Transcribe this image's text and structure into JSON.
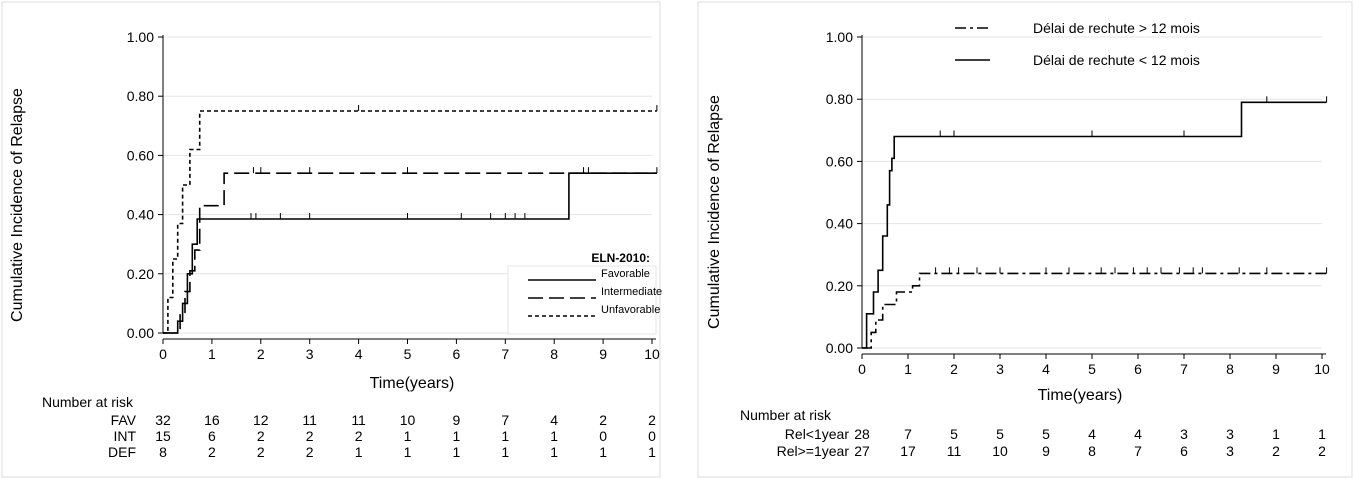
{
  "colors": {
    "line": "#000000",
    "grid": "#e4e4e4",
    "axis": "#000000",
    "background": "#ffffff"
  },
  "chart_data": [
    {
      "type": "line",
      "step": true,
      "ylabel": "Cumulative Incidence of Relapse",
      "xlabel": "Time(years)",
      "xlim": [
        0,
        10
      ],
      "ylim": [
        0,
        1
      ],
      "xticks": [
        0,
        1,
        2,
        3,
        4,
        5,
        6,
        7,
        8,
        9,
        10
      ],
      "yticks": [
        "0.00",
        "0.20",
        "0.40",
        "0.60",
        "0.80",
        "1.00"
      ],
      "grid": true,
      "legend": {
        "position": "bottom-right",
        "title": "ELN-2010:"
      },
      "series": [
        {
          "name": "Favorable",
          "style": "solid",
          "points": [
            [
              0,
              0
            ],
            [
              0.3,
              0
            ],
            [
              0.3,
              0.04
            ],
            [
              0.4,
              0.04
            ],
            [
              0.4,
              0.1
            ],
            [
              0.5,
              0.1
            ],
            [
              0.5,
              0.2
            ],
            [
              0.6,
              0.2
            ],
            [
              0.6,
              0.3
            ],
            [
              0.7,
              0.3
            ],
            [
              0.7,
              0.385
            ],
            [
              8.3,
              0.385
            ],
            [
              8.3,
              0.54
            ],
            [
              10.1,
              0.54
            ]
          ],
          "censor": [
            1.8,
            1.9,
            2.4,
            3.0,
            5.0,
            6.1,
            6.7,
            7.0,
            7.2,
            7.4,
            8.6
          ]
        },
        {
          "name": "Intermediate",
          "style": "dashed",
          "points": [
            [
              0,
              0
            ],
            [
              0.35,
              0
            ],
            [
              0.35,
              0.07
            ],
            [
              0.45,
              0.07
            ],
            [
              0.45,
              0.14
            ],
            [
              0.55,
              0.14
            ],
            [
              0.55,
              0.21
            ],
            [
              0.65,
              0.21
            ],
            [
              0.65,
              0.28
            ],
            [
              0.75,
              0.28
            ],
            [
              0.75,
              0.43
            ],
            [
              1.25,
              0.43
            ],
            [
              1.25,
              0.54
            ],
            [
              10.1,
              0.54
            ]
          ],
          "censor": [
            1.85,
            2.0,
            3.0,
            5.0,
            8.7,
            10.1
          ]
        },
        {
          "name": "Unfavorable",
          "style": "dotted",
          "points": [
            [
              0,
              0
            ],
            [
              0.1,
              0
            ],
            [
              0.1,
              0.12
            ],
            [
              0.2,
              0.12
            ],
            [
              0.2,
              0.25
            ],
            [
              0.3,
              0.25
            ],
            [
              0.3,
              0.37
            ],
            [
              0.4,
              0.37
            ],
            [
              0.4,
              0.5
            ],
            [
              0.55,
              0.5
            ],
            [
              0.55,
              0.62
            ],
            [
              0.75,
              0.62
            ],
            [
              0.75,
              0.75
            ],
            [
              10.1,
              0.75
            ]
          ],
          "censor": [
            4.0,
            10.1
          ]
        }
      ],
      "risk_table": {
        "title": "Number at risk",
        "rows": [
          {
            "label": "FAV",
            "values": [
              "32",
              "16",
              "12",
              "11",
              "11",
              "10",
              "9",
              "7",
              "4",
              "2",
              "2"
            ]
          },
          {
            "label": "INT",
            "values": [
              "15",
              "6",
              "2",
              "2",
              "2",
              "1",
              "1",
              "1",
              "1",
              "0",
              "0"
            ]
          },
          {
            "label": "DEF",
            "values": [
              "8",
              "2",
              "2",
              "2",
              "1",
              "1",
              "1",
              "1",
              "1",
              "1",
              "1"
            ]
          }
        ]
      }
    },
    {
      "type": "line",
      "step": true,
      "ylabel": "Cumulative Incidence of Relapse",
      "xlabel": "Time(years)",
      "xlim": [
        0,
        10
      ],
      "ylim": [
        0,
        1
      ],
      "xticks": [
        0,
        1,
        2,
        3,
        4,
        5,
        6,
        7,
        8,
        9,
        10
      ],
      "yticks": [
        "0.00",
        "0.20",
        "0.40",
        "0.60",
        "0.80",
        "1.00"
      ],
      "grid": true,
      "legend": {
        "position": "top"
      },
      "series": [
        {
          "name": "Délai de rechute > 12 mois",
          "style": "dashdot",
          "points": [
            [
              0,
              0
            ],
            [
              0.2,
              0
            ],
            [
              0.2,
              0.05
            ],
            [
              0.3,
              0.05
            ],
            [
              0.3,
              0.09
            ],
            [
              0.45,
              0.09
            ],
            [
              0.45,
              0.14
            ],
            [
              0.75,
              0.14
            ],
            [
              0.75,
              0.18
            ],
            [
              1.1,
              0.18
            ],
            [
              1.1,
              0.2
            ],
            [
              1.25,
              0.2
            ],
            [
              1.25,
              0.24
            ],
            [
              10.1,
              0.24
            ]
          ],
          "censor": [
            1.6,
            1.9,
            2.1,
            2.5,
            3.0,
            4.0,
            4.5,
            5.2,
            5.5,
            5.9,
            6.2,
            6.5,
            6.9,
            7.2,
            7.4,
            8.2,
            8.8,
            10.1
          ]
        },
        {
          "name": "Délai de rechute < 12 mois",
          "style": "solid",
          "points": [
            [
              0,
              0
            ],
            [
              0.1,
              0
            ],
            [
              0.1,
              0.11
            ],
            [
              0.25,
              0.11
            ],
            [
              0.25,
              0.18
            ],
            [
              0.35,
              0.18
            ],
            [
              0.35,
              0.25
            ],
            [
              0.45,
              0.25
            ],
            [
              0.45,
              0.36
            ],
            [
              0.55,
              0.36
            ],
            [
              0.55,
              0.46
            ],
            [
              0.6,
              0.46
            ],
            [
              0.6,
              0.57
            ],
            [
              0.65,
              0.57
            ],
            [
              0.65,
              0.61
            ],
            [
              0.7,
              0.61
            ],
            [
              0.7,
              0.68
            ],
            [
              8.25,
              0.68
            ],
            [
              8.25,
              0.79
            ],
            [
              10.1,
              0.79
            ]
          ],
          "censor": [
            1.7,
            2.0,
            5.0,
            7.0,
            8.8,
            10.1
          ]
        }
      ],
      "risk_table": {
        "title": "Number at risk",
        "rows": [
          {
            "label": "Rel<1year",
            "values": [
              "28",
              "7",
              "5",
              "5",
              "5",
              "4",
              "4",
              "3",
              "3",
              "1",
              "1"
            ]
          },
          {
            "label": "Rel>=1year",
            "values": [
              "27",
              "17",
              "11",
              "10",
              "9",
              "8",
              "7",
              "6",
              "3",
              "2",
              "2"
            ]
          }
        ]
      }
    }
  ]
}
